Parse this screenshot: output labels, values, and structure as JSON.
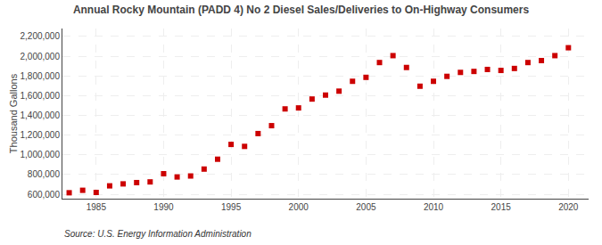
{
  "chart_data": {
    "type": "scatter",
    "title": "Annual Rocky Mountain (PADD 4) No 2 Diesel Sales/Deliveries to On-Highway Consumers",
    "ylabel": "Thousand Gallons",
    "annotations": [
      "Source: U.S. Energy Information Administration"
    ],
    "color": "#cc0000",
    "marker": "square",
    "grid": true,
    "xlim": [
      1982.5,
      2021.5
    ],
    "ylim": [
      555000,
      2280000
    ],
    "xticks": [
      1985,
      1990,
      1995,
      2000,
      2005,
      2010,
      2015,
      2020
    ],
    "yticks": [
      {
        "value": 600000,
        "label": "600,000"
      },
      {
        "value": 800000,
        "label": "800,000"
      },
      {
        "value": 1000000,
        "label": "1,000,000"
      },
      {
        "value": 1200000,
        "label": "1,200,000"
      },
      {
        "value": 1400000,
        "label": "1,400,000"
      },
      {
        "value": 1600000,
        "label": "1,600,000"
      },
      {
        "value": 1800000,
        "label": "1,800,000"
      },
      {
        "value": 2000000,
        "label": "2,000,000"
      },
      {
        "value": 2200000,
        "label": "2,200,000"
      }
    ],
    "x": [
      1983,
      1984,
      1985,
      1986,
      1987,
      1988,
      1989,
      1990,
      1991,
      1992,
      1993,
      1994,
      1995,
      1996,
      1997,
      1998,
      1999,
      2000,
      2001,
      2002,
      2003,
      2004,
      2005,
      2006,
      2007,
      2008,
      2009,
      2010,
      2011,
      2012,
      2013,
      2014,
      2015,
      2016,
      2017,
      2018,
      2019,
      2020
    ],
    "values": [
      615000,
      640000,
      618000,
      685000,
      705000,
      718000,
      725000,
      808000,
      775000,
      785000,
      855000,
      955000,
      1105000,
      1085000,
      1215000,
      1295000,
      1465000,
      1475000,
      1565000,
      1605000,
      1645000,
      1745000,
      1785000,
      1935000,
      2005000,
      1885000,
      1695000,
      1745000,
      1795000,
      1835000,
      1845000,
      1865000,
      1855000,
      1875000,
      1935000,
      1955000,
      2005000,
      2085000
    ]
  }
}
